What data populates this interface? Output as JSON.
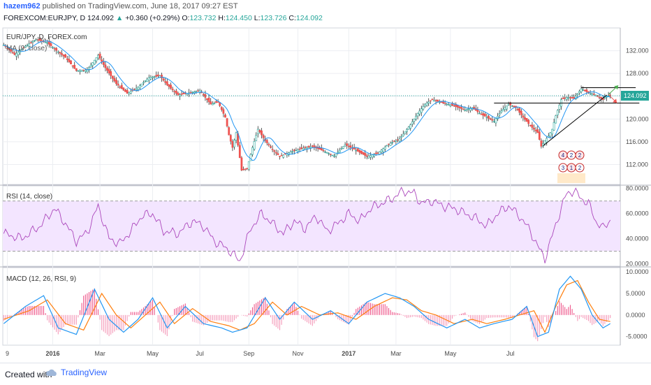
{
  "header": {
    "author": "hazem962",
    "published": "published on TradingView.com, June 18, 2017 09:27 EST",
    "symbol": "FOREXCOM:EURJPY, D",
    "last": "124.092",
    "change": "+0.360 (+0.29%)",
    "open_label": "O:",
    "open": "123.732",
    "high_label": "H:",
    "high": "124.450",
    "low_label": "L:",
    "low": "123.726",
    "close_label": "C:",
    "close": "124.092"
  },
  "chart_data": [
    {
      "type": "candlestick",
      "title": "EUR/JPY, D, FOREX.com",
      "indicator": "MA (9, close)",
      "ylim": [
        108.5,
        136.0
      ],
      "yticks": [
        "132.000",
        "128.000",
        "124.000",
        "120.000",
        "116.000",
        "112.000"
      ],
      "ytick_values": [
        132,
        128,
        124,
        120,
        116,
        112
      ],
      "price_label": "124.092",
      "current_price": 124.092,
      "x_labels": [
        "9",
        "2016",
        "Mar",
        "May",
        "Jul",
        "Sep",
        "Nov",
        "2017",
        "Mar",
        "May",
        "Jul"
      ],
      "close_anchors": [
        [
          0,
          133.0
        ],
        [
          6,
          131.3
        ],
        [
          12,
          132.8
        ],
        [
          18,
          134.0
        ],
        [
          24,
          133.4
        ],
        [
          28,
          132.3
        ],
        [
          34,
          130.8
        ],
        [
          40,
          128.5
        ],
        [
          46,
          128.6
        ],
        [
          52,
          131.2
        ],
        [
          56,
          129.0
        ],
        [
          62,
          126.2
        ],
        [
          68,
          124.5
        ],
        [
          74,
          125.6
        ],
        [
          80,
          127.3
        ],
        [
          86,
          127.6
        ],
        [
          90,
          126.0
        ],
        [
          96,
          124.2
        ],
        [
          102,
          124.6
        ],
        [
          108,
          125.0
        ],
        [
          114,
          122.6
        ],
        [
          118,
          123.0
        ],
        [
          122,
          120.3
        ],
        [
          124,
          117.2
        ],
        [
          126,
          115.0
        ],
        [
          128,
          117.6
        ],
        [
          131,
          111.0
        ],
        [
          134,
          111.3
        ],
        [
          137,
          115.0
        ],
        [
          140,
          118.2
        ],
        [
          144,
          116.2
        ],
        [
          148,
          114.6
        ],
        [
          152,
          113.4
        ],
        [
          158,
          114.2
        ],
        [
          164,
          114.8
        ],
        [
          170,
          115.2
        ],
        [
          176,
          114.4
        ],
        [
          182,
          113.5
        ],
        [
          188,
          115.5
        ],
        [
          194,
          114.5
        ],
        [
          200,
          113.4
        ],
        [
          206,
          114.0
        ],
        [
          212,
          115.6
        ],
        [
          218,
          116.5
        ],
        [
          224,
          119.0
        ],
        [
          228,
          121.0
        ],
        [
          232,
          122.6
        ],
        [
          236,
          123.4
        ],
        [
          242,
          122.8
        ],
        [
          248,
          122.3
        ],
        [
          254,
          121.6
        ],
        [
          258,
          122.0
        ],
        [
          262,
          121.0
        ],
        [
          266,
          120.3
        ],
        [
          270,
          119.6
        ],
        [
          274,
          121.4
        ],
        [
          278,
          122.6
        ],
        [
          282,
          122.0
        ],
        [
          286,
          120.3
        ],
        [
          290,
          118.8
        ],
        [
          294,
          117.6
        ],
        [
          296,
          115.2
        ],
        [
          298,
          116.2
        ],
        [
          300,
          117.0
        ],
        [
          302,
          118.2
        ],
        [
          304,
          120.6
        ],
        [
          307,
          123.4
        ],
        [
          310,
          123.8
        ],
        [
          314,
          123.6
        ],
        [
          318,
          125.3
        ],
        [
          322,
          124.6
        ],
        [
          326,
          124.2
        ],
        [
          330,
          123.4
        ],
        [
          332,
          124.092
        ]
      ],
      "pattern_lines": [
        {
          "name": "neckline-resistance",
          "from": [
            270,
            122.8
          ],
          "to": [
            350,
            122.8
          ]
        },
        {
          "name": "upper-range",
          "from": [
            318,
            125.5
          ],
          "to": [
            348,
            125.5
          ]
        },
        {
          "name": "rising-support",
          "from": [
            297,
            115.3
          ],
          "to": [
            332,
            124.2
          ]
        }
      ],
      "arrows": [
        {
          "name": "bullish-arrow",
          "direction": "up",
          "color": "#26a69a"
        },
        {
          "name": "bearish-arrow",
          "direction": "down",
          "color": "#ef5350"
        }
      ],
      "badges": [
        "4",
        "2",
        "2",
        "3",
        "1",
        "2"
      ]
    },
    {
      "type": "line",
      "title": "RSI (14, close)",
      "ylim": [
        18,
        82
      ],
      "yticks": [
        "80.0000",
        "60.0000",
        "40.0000",
        "20.0000"
      ],
      "ytick_values": [
        80,
        60,
        40,
        20
      ],
      "bands": [
        70,
        30
      ],
      "series": [
        {
          "values_anchors": [
            [
              0,
              44
            ],
            [
              10,
              40
            ],
            [
              20,
              50
            ],
            [
              28,
              64
            ],
            [
              34,
              52
            ],
            [
              40,
              38
            ],
            [
              46,
              45
            ],
            [
              52,
              66
            ],
            [
              58,
              40
            ],
            [
              64,
              36
            ],
            [
              70,
              46
            ],
            [
              76,
              58
            ],
            [
              82,
              60
            ],
            [
              88,
              46
            ],
            [
              96,
              44
            ],
            [
              104,
              54
            ],
            [
              110,
              50
            ],
            [
              116,
              38
            ],
            [
              122,
              33
            ],
            [
              126,
              28
            ],
            [
              130,
              22
            ],
            [
              136,
              48
            ],
            [
              142,
              60
            ],
            [
              148,
              52
            ],
            [
              154,
              44
            ],
            [
              160,
              54
            ],
            [
              166,
              48
            ],
            [
              172,
              58
            ],
            [
              178,
              46
            ],
            [
              184,
              52
            ],
            [
              190,
              60
            ],
            [
              196,
              54
            ],
            [
              202,
              64
            ],
            [
              208,
              68
            ],
            [
              214,
              72
            ],
            [
              220,
              78
            ],
            [
              226,
              76
            ],
            [
              230,
              68
            ],
            [
              236,
              70
            ],
            [
              242,
              66
            ],
            [
              248,
              64
            ],
            [
              254,
              60
            ],
            [
              260,
              56
            ],
            [
              266,
              50
            ],
            [
              272,
              60
            ],
            [
              278,
              66
            ],
            [
              284,
              58
            ],
            [
              290,
              46
            ],
            [
              294,
              34
            ],
            [
              298,
              24
            ],
            [
              302,
              42
            ],
            [
              306,
              60
            ],
            [
              310,
              76
            ],
            [
              314,
              78
            ],
            [
              318,
              72
            ],
            [
              322,
              68
            ],
            [
              326,
              54
            ],
            [
              330,
              48
            ],
            [
              334,
              55
            ]
          ]
        }
      ]
    },
    {
      "type": "line",
      "title": "MACD (12, 26, RSI, 9)",
      "ylim": [
        -7,
        11
      ],
      "yticks": [
        "10.0000",
        "5.0000",
        "0.0000",
        "-5.0000"
      ],
      "ytick_values": [
        10,
        5,
        0,
        -5
      ],
      "series": [
        {
          "name": "",
          "color": "#2196f3",
          "values_anchors": [
            [
              0,
              -2
            ],
            [
              12,
              2
            ],
            [
              22,
              4.5
            ],
            [
              30,
              -3
            ],
            [
              40,
              -4.5
            ],
            [
              50,
              6
            ],
            [
              58,
              -1
            ],
            [
              66,
              -4
            ],
            [
              74,
              -1
            ],
            [
              82,
              4
            ],
            [
              90,
              -3
            ],
            [
              100,
              2
            ],
            [
              110,
              -2
            ],
            [
              120,
              -3
            ],
            [
              126,
              -4
            ],
            [
              134,
              -3
            ],
            [
              144,
              4
            ],
            [
              152,
              -1
            ],
            [
              160,
              3
            ],
            [
              170,
              -1
            ],
            [
              180,
              1
            ],
            [
              190,
              -2
            ],
            [
              200,
              3
            ],
            [
              210,
              5
            ],
            [
              218,
              4
            ],
            [
              226,
              2
            ],
            [
              234,
              -1
            ],
            [
              244,
              -3
            ],
            [
              254,
              -1
            ],
            [
              262,
              -3
            ],
            [
              270,
              -2
            ],
            [
              280,
              -1
            ],
            [
              288,
              2
            ],
            [
              294,
              -5
            ],
            [
              300,
              -4
            ],
            [
              306,
              6
            ],
            [
              312,
              9
            ],
            [
              318,
              6
            ],
            [
              324,
              0
            ],
            [
              330,
              -3
            ],
            [
              334,
              -2
            ]
          ]
        },
        {
          "name": "",
          "color": "#ff7f0e",
          "values_anchors": [
            [
              0,
              -1
            ],
            [
              14,
              1
            ],
            [
              24,
              3.5
            ],
            [
              34,
              -2
            ],
            [
              44,
              -3.5
            ],
            [
              54,
              5
            ],
            [
              62,
              0
            ],
            [
              70,
              -3
            ],
            [
              78,
              0
            ],
            [
              86,
              3
            ],
            [
              94,
              -2
            ],
            [
              104,
              1.5
            ],
            [
              114,
              -1.5
            ],
            [
              124,
              -2.5
            ],
            [
              130,
              -3.5
            ],
            [
              138,
              -2
            ],
            [
              148,
              3
            ],
            [
              156,
              0
            ],
            [
              164,
              2
            ],
            [
              174,
              0
            ],
            [
              184,
              0.5
            ],
            [
              194,
              -1
            ],
            [
              204,
              2
            ],
            [
              214,
              4
            ],
            [
              222,
              3.5
            ],
            [
              230,
              1
            ],
            [
              238,
              0
            ],
            [
              248,
              -2
            ],
            [
              258,
              -1
            ],
            [
              266,
              -2
            ],
            [
              276,
              -1
            ],
            [
              284,
              0
            ],
            [
              292,
              1
            ],
            [
              298,
              -4
            ],
            [
              304,
              2
            ],
            [
              310,
              7
            ],
            [
              316,
              8
            ],
            [
              322,
              3
            ],
            [
              328,
              -1
            ],
            [
              334,
              -1.5
            ]
          ]
        }
      ]
    }
  ]
}
